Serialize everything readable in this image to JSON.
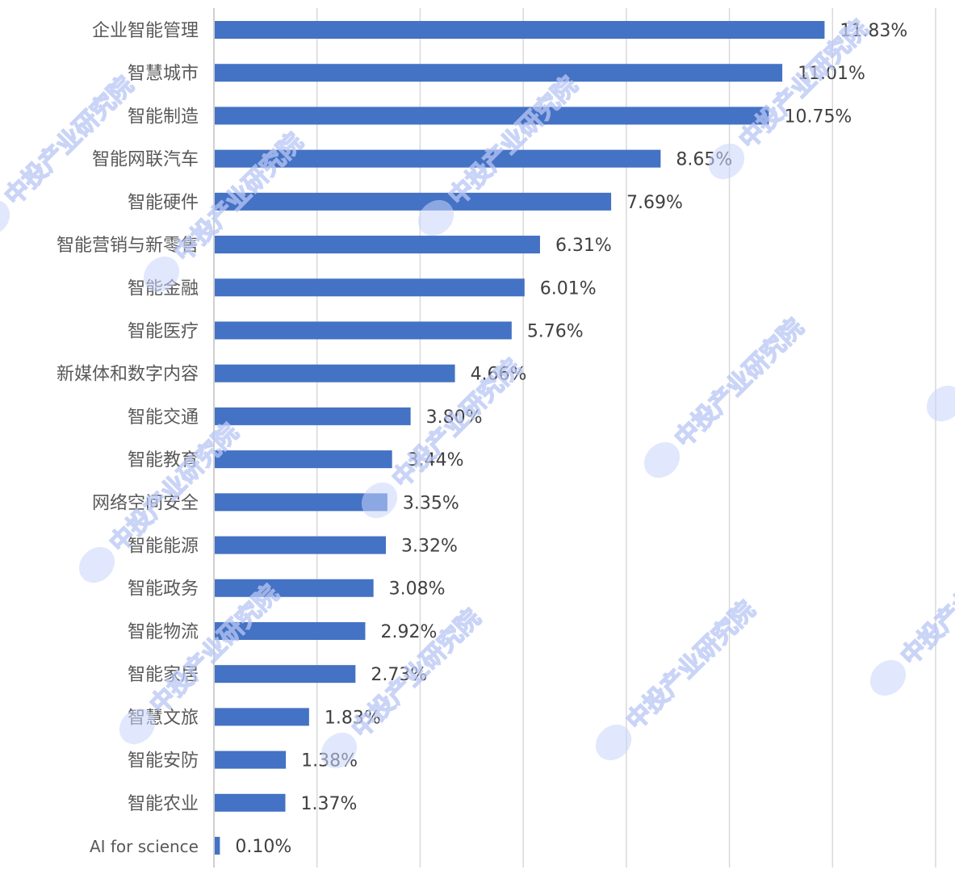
{
  "chart_data": {
    "type": "bar",
    "orientation": "horizontal",
    "title": "",
    "xlabel": "",
    "ylabel": "",
    "xlim": [
      0,
      14
    ],
    "grid": true,
    "grid_step": 2,
    "show_x_tick_labels": false,
    "bar_color": "#4472C4",
    "categories": [
      "企业智能管理",
      "智慧城市",
      "智能制造",
      "智能网联汽车",
      "智能硬件",
      "智能营销与新零售",
      "智能金融",
      "智能医疗",
      "新媒体和数字内容",
      "智能交通",
      "智能教育",
      "网络空间安全",
      "智能能源",
      "智能政务",
      "智能物流",
      "智能家居",
      "智慧文旅",
      "智能安防",
      "智能农业",
      "AI for science"
    ],
    "values": [
      11.83,
      11.01,
      10.75,
      8.65,
      7.69,
      6.31,
      6.01,
      5.76,
      4.66,
      3.8,
      3.44,
      3.35,
      3.32,
      3.08,
      2.92,
      2.73,
      1.83,
      1.38,
      1.37,
      0.1
    ],
    "data_labels": [
      "11.83%",
      "11.01%",
      "10.75%",
      "8.65%",
      "7.69%",
      "6.31%",
      "6.01%",
      "5.76%",
      "4.66%",
      "3.80%",
      "3.44%",
      "3.35%",
      "3.32%",
      "3.08%",
      "2.92%",
      "2.73%",
      "1.83%",
      "1.38%",
      "1.37%",
      "0.10%"
    ]
  },
  "watermark": {
    "text": "中投产业研究院",
    "color": "#b8c6f5"
  }
}
